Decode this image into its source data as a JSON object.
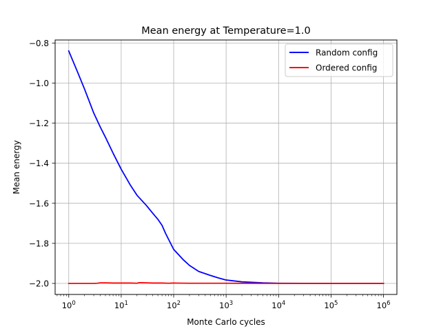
{
  "chart_data": {
    "type": "line",
    "title": "Mean energy at Temperature=1.0",
    "xlabel": "Monte Carlo cycles",
    "ylabel": "Mean energy",
    "xscale": "log",
    "xlim": [
      0.55,
      1800000
    ],
    "ylim": [
      -2.055,
      -0.785
    ],
    "grid": true,
    "legend_position": "top-right",
    "x_ticks": [
      {
        "value": 1,
        "base": "10",
        "exp": "0"
      },
      {
        "value": 10,
        "base": "10",
        "exp": "1"
      },
      {
        "value": 100,
        "base": "10",
        "exp": "2"
      },
      {
        "value": 1000,
        "base": "10",
        "exp": "3"
      },
      {
        "value": 10000,
        "base": "10",
        "exp": "4"
      },
      {
        "value": 100000,
        "base": "10",
        "exp": "5"
      },
      {
        "value": 1000000,
        "base": "10",
        "exp": "6"
      }
    ],
    "y_ticks": [
      {
        "value": -0.8,
        "label": "−0.8"
      },
      {
        "value": -1.0,
        "label": "−1.0"
      },
      {
        "value": -1.2,
        "label": "−1.2"
      },
      {
        "value": -1.4,
        "label": "−1.4"
      },
      {
        "value": -1.6,
        "label": "−1.6"
      },
      {
        "value": -1.8,
        "label": "−1.8"
      },
      {
        "value": -2.0,
        "label": "−2.0"
      }
    ],
    "series": [
      {
        "name": "Random config",
        "color": "#0000ff",
        "x": [
          1,
          1.5,
          2,
          3,
          4,
          5,
          7,
          10,
          15,
          20,
          30,
          40,
          50,
          60,
          70,
          80,
          100,
          150,
          200,
          300,
          500,
          700,
          1000,
          2000,
          5000,
          10000,
          100000,
          1000000
        ],
        "y": [
          -0.84,
          -0.95,
          -1.03,
          -1.15,
          -1.22,
          -1.27,
          -1.35,
          -1.43,
          -1.51,
          -1.56,
          -1.61,
          -1.65,
          -1.68,
          -1.71,
          -1.75,
          -1.78,
          -1.83,
          -1.88,
          -1.91,
          -1.94,
          -1.96,
          -1.972,
          -1.983,
          -1.992,
          -1.997,
          -1.999,
          -2.0,
          -2.0
        ]
      },
      {
        "name": "Ordered config",
        "color": "#ff0000",
        "x": [
          1,
          2,
          3,
          3.5,
          4,
          5,
          7,
          10,
          15,
          20,
          22,
          25,
          30,
          40,
          50,
          60,
          80,
          100,
          200,
          1000,
          10000,
          100000,
          1000000
        ],
        "y": [
          -2.0,
          -2.0,
          -2.0,
          -1.999,
          -1.997,
          -1.997,
          -1.998,
          -1.998,
          -1.998,
          -1.999,
          -1.996,
          -1.996,
          -1.997,
          -1.998,
          -1.998,
          -1.998,
          -1.999,
          -1.998,
          -1.999,
          -1.999,
          -2.0,
          -2.0,
          -2.0
        ]
      }
    ]
  }
}
